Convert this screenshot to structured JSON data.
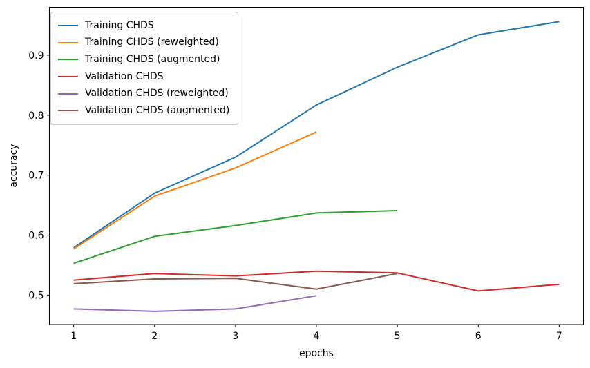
{
  "figure": {
    "background": "#ffffff",
    "text_color": "#000000",
    "spine_color": "#000000"
  },
  "chart_data": {
    "type": "line",
    "title": "",
    "xlabel": "epochs",
    "ylabel": "accuracy",
    "xlim": [
      0.7,
      7.3
    ],
    "ylim": [
      0.451,
      0.98
    ],
    "xticks": [
      1,
      2,
      3,
      4,
      5,
      6,
      7
    ],
    "yticks": [
      0.5,
      0.6,
      0.7,
      0.8,
      0.9
    ],
    "grid": false,
    "legend_position": "upper left",
    "series": [
      {
        "name": "Training CHDS",
        "color": "#1f77b4",
        "x": [
          1,
          2,
          3,
          4,
          5,
          6,
          7
        ],
        "values": [
          0.579,
          0.67,
          0.73,
          0.817,
          0.88,
          0.934,
          0.956
        ]
      },
      {
        "name": "Training CHDS (reweighted)",
        "color": "#ff7f0e",
        "x": [
          1,
          2,
          3,
          4
        ],
        "values": [
          0.577,
          0.665,
          0.712,
          0.772
        ]
      },
      {
        "name": "Training CHDS (augmented)",
        "color": "#2ca02c",
        "x": [
          1,
          2,
          3,
          4,
          5
        ],
        "values": [
          0.553,
          0.598,
          0.616,
          0.637,
          0.641
        ]
      },
      {
        "name": "Validation CHDS",
        "color": "#d62728",
        "x": [
          1,
          2,
          3,
          4,
          5,
          6,
          7
        ],
        "values": [
          0.525,
          0.536,
          0.532,
          0.54,
          0.537,
          0.507,
          0.518
        ]
      },
      {
        "name": "Validation CHDS (reweighted)",
        "color": "#9467bd",
        "x": [
          1,
          2,
          3,
          4
        ],
        "values": [
          0.477,
          0.473,
          0.477,
          0.499
        ]
      },
      {
        "name": "Validation CHDS (augmented)",
        "color": "#8c564b",
        "x": [
          1,
          2,
          3,
          4,
          5
        ],
        "values": [
          0.519,
          0.527,
          0.528,
          0.51,
          0.536
        ]
      }
    ]
  }
}
